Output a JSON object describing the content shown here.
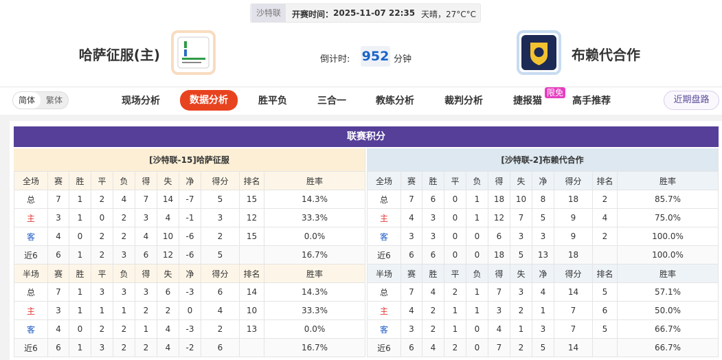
{
  "header": {
    "league": "沙特联",
    "kickoff_label": "开赛时间：",
    "kickoff_time": "2025-11-07 22:35",
    "weather": "天晴，27°C°C",
    "home": "哈萨征服(主)",
    "away": "布赖代合作",
    "countdown_label": "倒计时:",
    "countdown_value": "952",
    "countdown_unit": "分钟"
  },
  "nav": {
    "lang": [
      "简体",
      "繁体"
    ],
    "tabs": [
      "现场分析",
      "数据分析",
      "胜平负",
      "三合一",
      "教练分析",
      "裁判分析",
      "捷报猫",
      "高手推荐"
    ],
    "badge": "限免",
    "right": "近期盘路"
  },
  "standings": {
    "title": "联赛积分",
    "teams": [
      {
        "title": "[沙特联-15]哈萨征服",
        "full": {
          "columns": [
            "全场",
            "赛",
            "胜",
            "平",
            "负",
            "得",
            "失",
            "净",
            "得分",
            "排名",
            "胜率"
          ],
          "rows": [
            [
              "总",
              7,
              1,
              2,
              4,
              7,
              14,
              -7,
              5,
              15,
              "14.3%"
            ],
            [
              "主",
              3,
              1,
              0,
              2,
              3,
              4,
              -1,
              3,
              12,
              "33.3%"
            ],
            [
              "客",
              4,
              0,
              2,
              2,
              4,
              10,
              -6,
              2,
              15,
              "0.0%"
            ],
            [
              "近6",
              6,
              1,
              2,
              3,
              6,
              12,
              -6,
              5,
              null,
              "16.7%"
            ]
          ]
        },
        "half": {
          "columns": [
            "半场",
            "赛",
            "胜",
            "平",
            "负",
            "得",
            "失",
            "净",
            "得分",
            "排名",
            "胜率"
          ],
          "rows": [
            [
              "总",
              7,
              1,
              3,
              3,
              3,
              6,
              -3,
              6,
              14,
              "14.3%"
            ],
            [
              "主",
              3,
              1,
              1,
              1,
              2,
              2,
              0,
              4,
              10,
              "33.3%"
            ],
            [
              "客",
              4,
              0,
              2,
              2,
              1,
              4,
              -3,
              2,
              13,
              "0.0%"
            ],
            [
              "近6",
              6,
              1,
              3,
              2,
              2,
              4,
              -2,
              6,
              null,
              "16.7%"
            ]
          ]
        }
      },
      {
        "title": "[沙特联-2]布赖代合作",
        "full": {
          "columns": [
            "全场",
            "赛",
            "胜",
            "平",
            "负",
            "得",
            "失",
            "净",
            "得分",
            "排名",
            "胜率"
          ],
          "rows": [
            [
              "总",
              7,
              6,
              0,
              1,
              18,
              10,
              8,
              18,
              2,
              "85.7%"
            ],
            [
              "主",
              4,
              3,
              0,
              1,
              12,
              7,
              5,
              9,
              4,
              "75.0%"
            ],
            [
              "客",
              3,
              3,
              0,
              0,
              6,
              3,
              3,
              9,
              2,
              "100.0%"
            ],
            [
              "近6",
              6,
              6,
              0,
              0,
              18,
              5,
              13,
              18,
              null,
              "100.0%"
            ]
          ]
        },
        "half": {
          "columns": [
            "半场",
            "赛",
            "胜",
            "平",
            "负",
            "得",
            "失",
            "净",
            "得分",
            "排名",
            "胜率"
          ],
          "rows": [
            [
              "总",
              7,
              4,
              2,
              1,
              7,
              3,
              4,
              14,
              5,
              "57.1%"
            ],
            [
              "主",
              4,
              2,
              1,
              1,
              3,
              2,
              1,
              7,
              6,
              "50.0%"
            ],
            [
              "客",
              3,
              2,
              1,
              0,
              4,
              1,
              3,
              7,
              5,
              "66.7%"
            ],
            [
              "近6",
              6,
              4,
              2,
              0,
              7,
              2,
              5,
              14,
              null,
              "66.7%"
            ]
          ]
        }
      }
    ]
  }
}
